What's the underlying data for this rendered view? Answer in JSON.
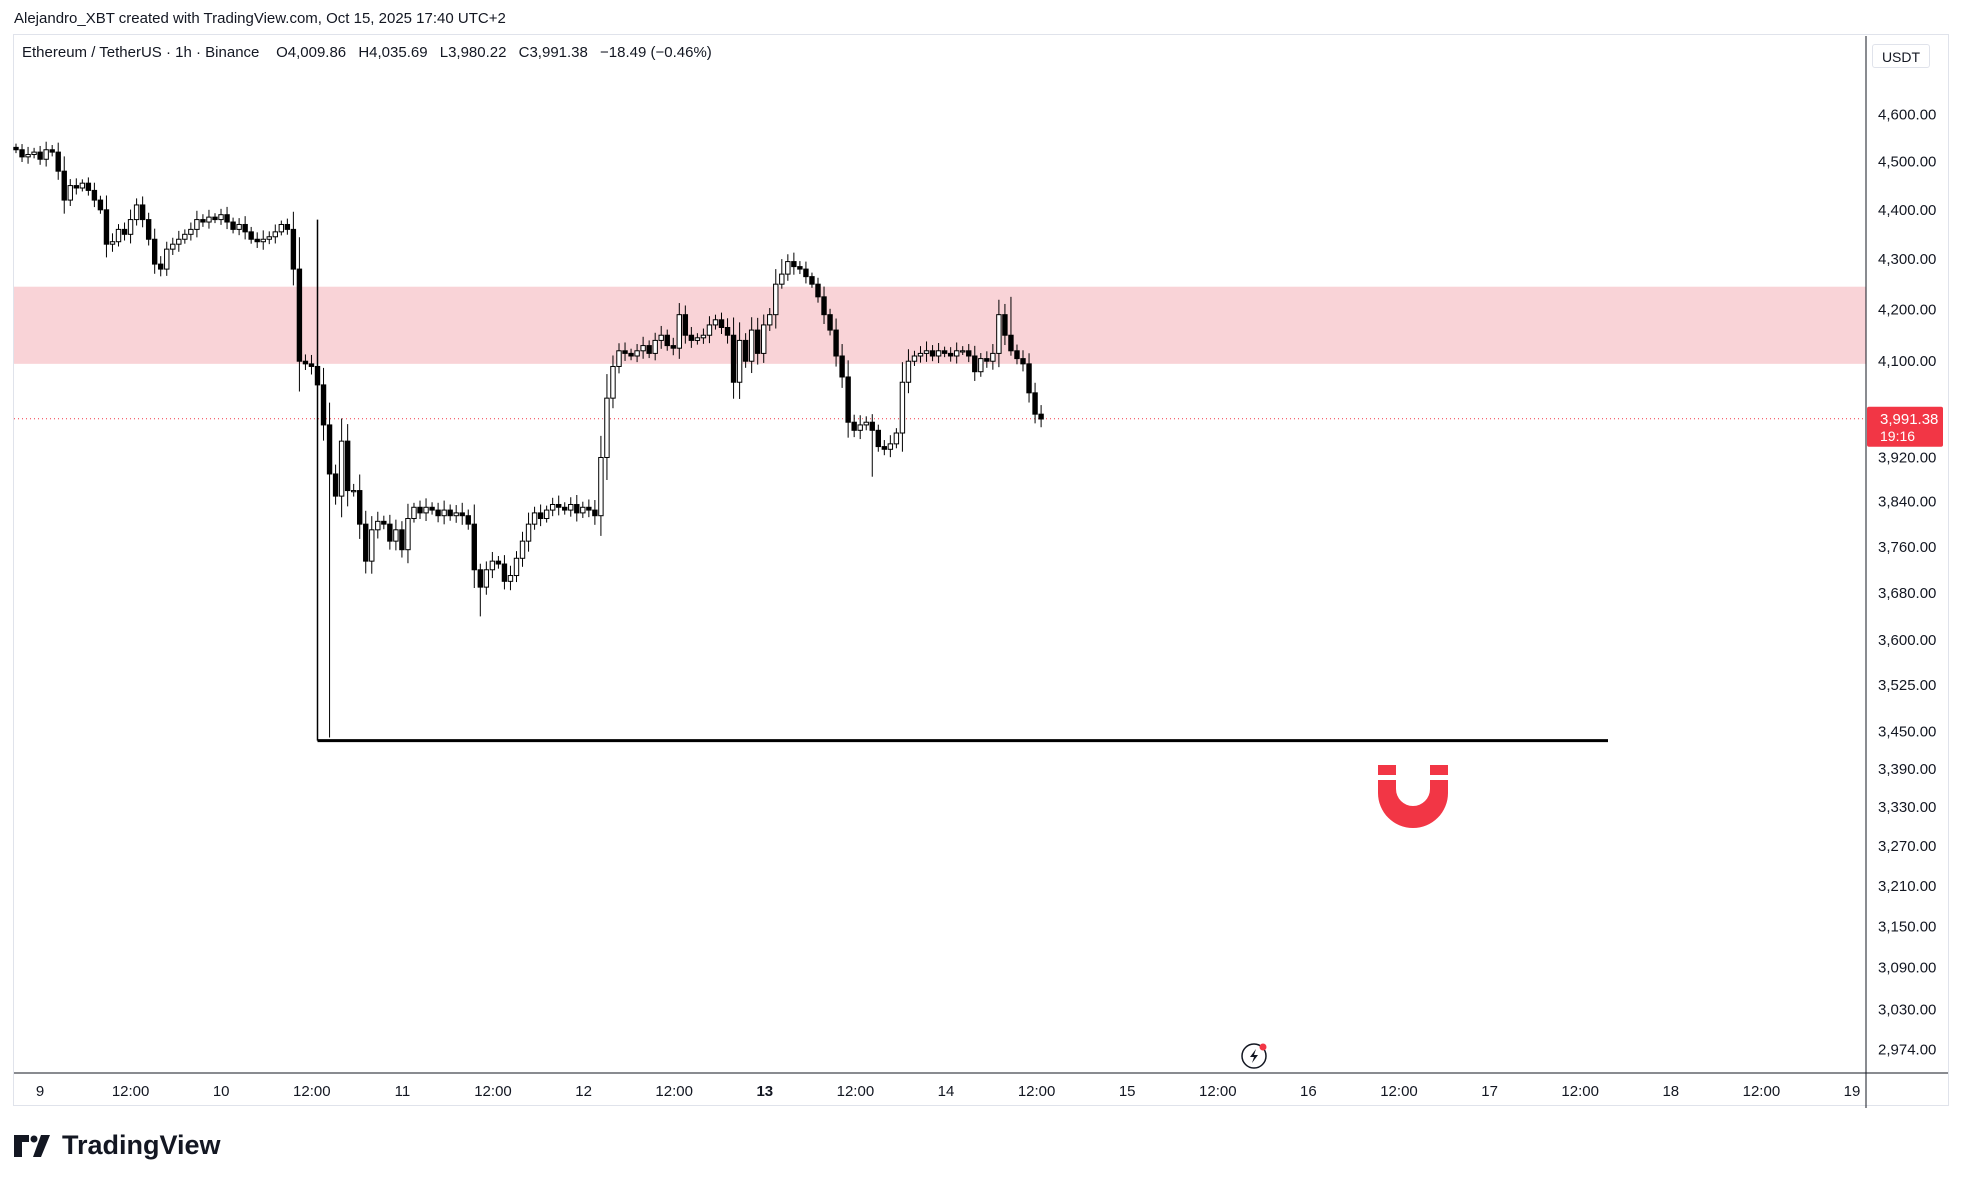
{
  "header": {
    "credit": "Alejandro_XBT created with TradingView.com, Oct 15, 2025 17:40 UTC+2"
  },
  "legend": {
    "symbol": "Ethereum / TetherUS",
    "interval": "1h",
    "exchange": "Binance",
    "open_label": "O",
    "open": "4,009.86",
    "high_label": "H",
    "high": "4,035.69",
    "low_label": "L",
    "low": "3,980.22",
    "close_label": "C",
    "close": "3,991.38",
    "change": "−18.49 (−0.46%)"
  },
  "price_scale": {
    "currency": "USDT",
    "last_price": "3,991.38",
    "countdown": "19:16"
  },
  "branding": {
    "logo_text": "TradingView"
  },
  "colors": {
    "zone": "#f9d3d7",
    "price_badge": "#f23645",
    "candle_down": "#000000",
    "candle_up": "#ffffff",
    "magnet_icon": "#f23645"
  },
  "chart_data": {
    "type": "candlestick",
    "symbol": "ETHUSDT",
    "interval": "1h",
    "y_scale": "log",
    "ylim": [
      2950,
      4680
    ],
    "y_ticks": [
      "4,600.00",
      "4,500.00",
      "4,400.00",
      "4,300.00",
      "4,200.00",
      "4,100.00",
      "3,920.00",
      "3,840.00",
      "3,760.00",
      "3,680.00",
      "3,600.00",
      "3,525.00",
      "3,450.00",
      "3,390.00",
      "3,330.00",
      "3,270.00",
      "3,210.00",
      "3,150.00",
      "3,090.00",
      "3,030.00",
      "2,974.00"
    ],
    "x_ticks": [
      {
        "label": "9",
        "bold": false
      },
      {
        "label": "12:00",
        "bold": false
      },
      {
        "label": "10",
        "bold": false
      },
      {
        "label": "12:00",
        "bold": false
      },
      {
        "label": "11",
        "bold": false
      },
      {
        "label": "12:00",
        "bold": false
      },
      {
        "label": "12",
        "bold": false
      },
      {
        "label": "12:00",
        "bold": false
      },
      {
        "label": "13",
        "bold": true
      },
      {
        "label": "12:00",
        "bold": false
      },
      {
        "label": "14",
        "bold": false
      },
      {
        "label": "12:00",
        "bold": false
      },
      {
        "label": "15",
        "bold": false
      },
      {
        "label": "12:00",
        "bold": false
      },
      {
        "label": "16",
        "bold": false
      },
      {
        "label": "12:00",
        "bold": false
      },
      {
        "label": "17",
        "bold": false
      },
      {
        "label": "12:00",
        "bold": false
      },
      {
        "label": "18",
        "bold": false
      },
      {
        "label": "12:00",
        "bold": false
      },
      {
        "label": "19",
        "bold": false
      }
    ],
    "resistance_zone": [
      4095,
      4245
    ],
    "support_line": 3435,
    "last_price": 3991.38,
    "grid": false,
    "closes": [
      4525,
      4510,
      4515,
      4520,
      4505,
      4525,
      4520,
      4480,
      4420,
      4450,
      4445,
      4455,
      4440,
      4420,
      4400,
      4330,
      4335,
      4360,
      4350,
      4380,
      4410,
      4380,
      4340,
      4290,
      4280,
      4320,
      4330,
      4340,
      4350,
      4360,
      4380,
      4375,
      4385,
      4380,
      4390,
      4375,
      4360,
      4370,
      4355,
      4340,
      4335,
      4340,
      4345,
      4355,
      4370,
      4360,
      4280,
      4100,
      4095,
      4090,
      4055,
      3980,
      3890,
      3850,
      3950,
      3860,
      3860,
      3800,
      3735,
      3790,
      3805,
      3800,
      3770,
      3790,
      3755,
      3810,
      3830,
      3820,
      3830,
      3825,
      3815,
      3825,
      3815,
      3820,
      3815,
      3800,
      3720,
      3690,
      3720,
      3735,
      3730,
      3700,
      3710,
      3740,
      3770,
      3800,
      3820,
      3810,
      3825,
      3835,
      3830,
      3825,
      3835,
      3820,
      3830,
      3825,
      3815,
      3920,
      4030,
      4090,
      4120,
      4115,
      4110,
      4120,
      4130,
      4115,
      4140,
      4150,
      4130,
      4125,
      4190,
      4150,
      4140,
      4145,
      4150,
      4170,
      4180,
      4165,
      4150,
      4060,
      4140,
      4100,
      4160,
      4115,
      4170,
      4190,
      4250,
      4270,
      4295,
      4285,
      4280,
      4265,
      4250,
      4225,
      4190,
      4160,
      4110,
      4070,
      3985,
      3970,
      3980,
      3985,
      3970,
      3940,
      3935,
      3945,
      3965,
      4060,
      4100,
      4110,
      4115,
      4120,
      4110,
      4120,
      4115,
      4110,
      4120,
      4120,
      4110,
      4080,
      4105,
      4100,
      4115,
      4190,
      4150,
      4120,
      4105,
      4095,
      4040,
      4000,
      3991
    ]
  }
}
